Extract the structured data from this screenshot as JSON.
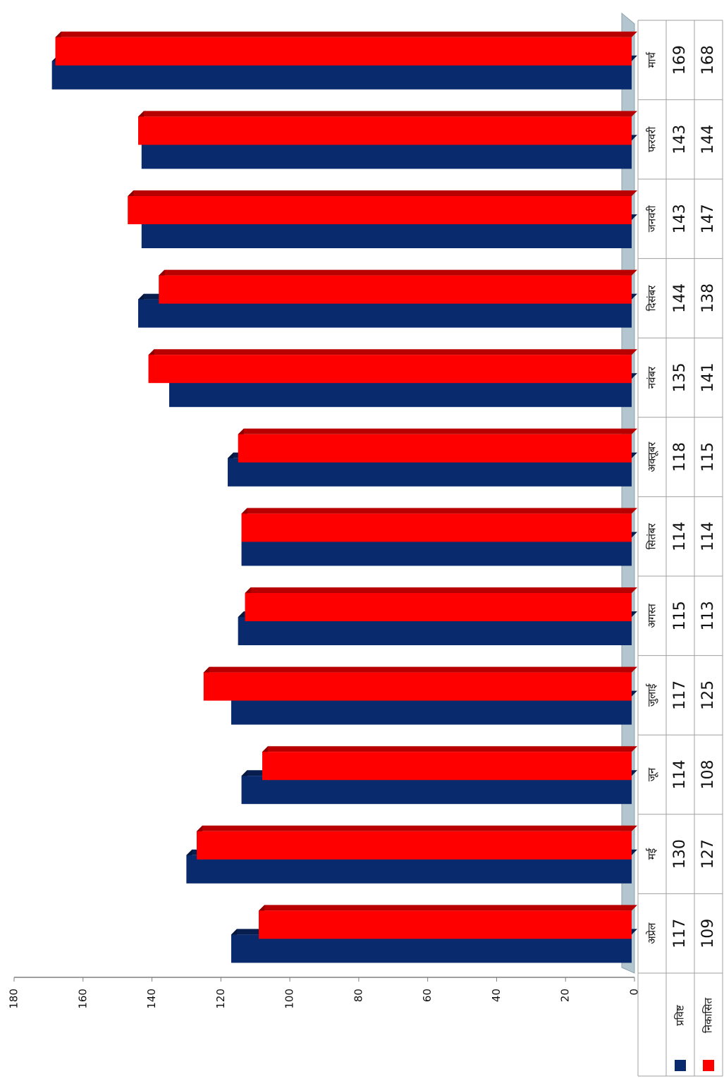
{
  "chart_data": {
    "type": "bar",
    "title": "",
    "xlabel": "",
    "ylabel": "",
    "ylim": [
      0,
      180
    ],
    "y_ticks": [
      "0",
      "20",
      "40",
      "60",
      "80",
      "100",
      "120",
      "140",
      "160",
      "180"
    ],
    "grid": false,
    "legend": "data-table-left",
    "categories": [
      "अप्रेल",
      "मई",
      "जून",
      "जुलाई",
      "अगस्त",
      "सितंबर",
      "अक्तूबर",
      "नवंबर",
      "दिसंबर",
      "जनवरी",
      "फरवरी",
      "मार्च"
    ],
    "series": [
      {
        "name": "प्रविष्ट",
        "color": "#0a2a6e",
        "values": [
          117,
          130,
          114,
          117,
          115,
          114,
          118,
          135,
          144,
          143,
          143,
          169
        ]
      },
      {
        "name": "निकासित",
        "color": "#ff0000",
        "values": [
          109,
          127,
          108,
          125,
          113,
          114,
          115,
          141,
          138,
          147,
          144,
          168
        ]
      }
    ],
    "table_values": {
      "0": [
        "117",
        "130",
        "114",
        "117",
        "115",
        "114",
        "118",
        "135",
        "144",
        "143",
        "143",
        "169"
      ],
      "1": [
        "109",
        "127",
        "108",
        "125",
        "113",
        "114",
        "115",
        "141",
        "138",
        "147",
        "144",
        "168"
      ]
    }
  }
}
